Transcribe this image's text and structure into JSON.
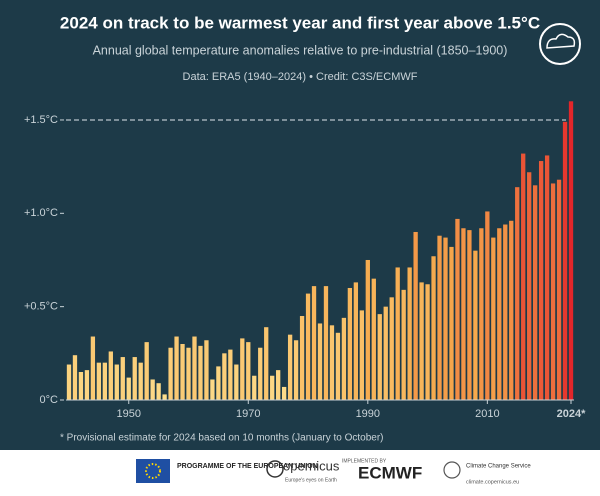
{
  "chart_data": {
    "type": "bar",
    "title": "2024 on track to be warmest year and first year above 1.5°C",
    "subtitle": "Annual global temperature anomalies relative to pre-industrial (1850–1900)",
    "source": "Data: ERA5 (1940–2024) • Credit: C3S/ECMWF",
    "footnote": "* Provisional estimate for 2024 based on 10 months (January to October)",
    "x": [
      1940,
      1941,
      1942,
      1943,
      1944,
      1945,
      1946,
      1947,
      1948,
      1949,
      1950,
      1951,
      1952,
      1953,
      1954,
      1955,
      1956,
      1957,
      1958,
      1959,
      1960,
      1961,
      1962,
      1963,
      1964,
      1965,
      1966,
      1967,
      1968,
      1969,
      1970,
      1971,
      1972,
      1973,
      1974,
      1975,
      1976,
      1977,
      1978,
      1979,
      1980,
      1981,
      1982,
      1983,
      1984,
      1985,
      1986,
      1987,
      1988,
      1989,
      1990,
      1991,
      1992,
      1993,
      1994,
      1995,
      1996,
      1997,
      1998,
      1999,
      2000,
      2001,
      2002,
      2003,
      2004,
      2005,
      2006,
      2007,
      2008,
      2009,
      2010,
      2011,
      2012,
      2013,
      2014,
      2015,
      2016,
      2017,
      2018,
      2019,
      2020,
      2021,
      2022,
      2023,
      2024
    ],
    "values": [
      0.19,
      0.24,
      0.15,
      0.16,
      0.34,
      0.2,
      0.2,
      0.26,
      0.19,
      0.23,
      0.12,
      0.23,
      0.2,
      0.31,
      0.11,
      0.09,
      0.03,
      0.28,
      0.34,
      0.3,
      0.28,
      0.34,
      0.29,
      0.32,
      0.11,
      0.18,
      0.25,
      0.27,
      0.19,
      0.33,
      0.31,
      0.13,
      0.28,
      0.39,
      0.13,
      0.16,
      0.07,
      0.35,
      0.32,
      0.45,
      0.57,
      0.61,
      0.41,
      0.61,
      0.4,
      0.36,
      0.44,
      0.6,
      0.63,
      0.48,
      0.75,
      0.65,
      0.46,
      0.5,
      0.55,
      0.71,
      0.59,
      0.71,
      0.9,
      0.63,
      0.62,
      0.77,
      0.88,
      0.87,
      0.82,
      0.97,
      0.92,
      0.91,
      0.8,
      0.92,
      1.01,
      0.87,
      0.92,
      0.94,
      0.96,
      1.14,
      1.32,
      1.22,
      1.15,
      1.28,
      1.31,
      1.16,
      1.18,
      1.49,
      1.6
    ],
    "color_scale": [
      "#fde08f",
      "#f6a94c",
      "#e3262a"
    ],
    "xlim": [
      1939.5,
      2024.5
    ],
    "xticks": [
      1950,
      1970,
      1990,
      2010,
      {
        "value": 2024,
        "label": "2024*"
      }
    ],
    "ylim": [
      0,
      1.6
    ],
    "yticks": [
      {
        "value": 0,
        "label": "0°C"
      },
      {
        "value": 0.5,
        "label": "+0.5°C"
      },
      {
        "value": 1,
        "label": "+1.0°C"
      },
      {
        "value": 1.5,
        "label": "+1.5°C"
      }
    ],
    "threshold": 1.5
  },
  "footer": {
    "eu": "PROGRAMME OF THE EUROPEAN UNION",
    "copernicus": "opernicus",
    "copernicus_tagline": "Europe's eyes on Earth",
    "implemented": "IMPLEMENTED BY",
    "ecmwf": "ECMWF",
    "c3s": "Climate Change Service",
    "url": "climate.copernicus.eu"
  }
}
